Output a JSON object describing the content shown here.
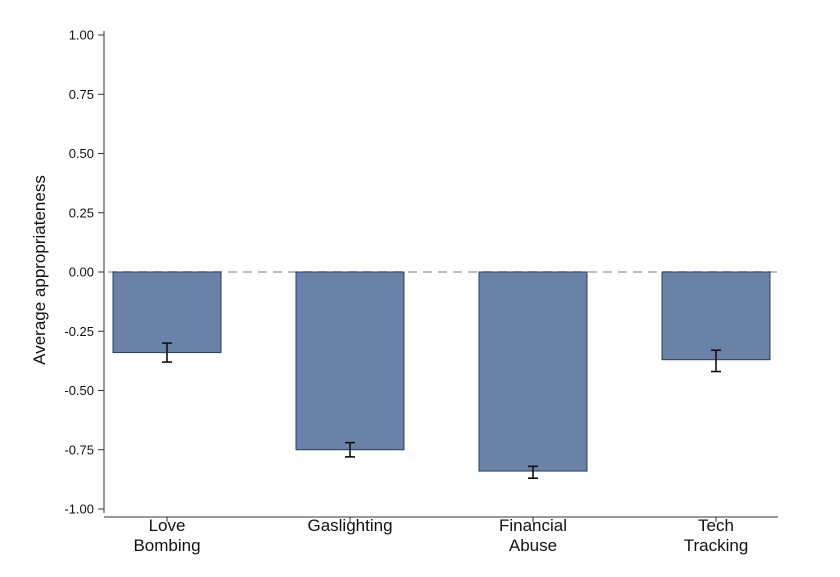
{
  "chart_data": {
    "type": "bar",
    "categories": [
      [
        "Love",
        "Bombing"
      ],
      [
        "Gaslighting"
      ],
      [
        "Financial",
        "Abuse"
      ],
      [
        "Tech",
        "Tracking"
      ]
    ],
    "values": [
      -0.34,
      -0.75,
      -0.84,
      -0.37
    ],
    "error_bars": [
      {
        "low": -0.38,
        "high": -0.3
      },
      {
        "low": -0.78,
        "high": -0.72
      },
      {
        "low": -0.87,
        "high": -0.82
      },
      {
        "low": -0.42,
        "high": -0.33
      }
    ],
    "ylabel": "Average appropriateness",
    "xlabel": "",
    "title": "",
    "ylim": [
      -1.0,
      1.0
    ],
    "yticks": [
      1.0,
      0.75,
      0.5,
      0.25,
      0.0,
      -0.25,
      -0.5,
      -0.75,
      -1.0
    ],
    "ytick_labels": [
      "1.00",
      "0.75",
      "0.50",
      "0.25",
      "0.00",
      "-0.25",
      "-0.50",
      "-0.75",
      "-1.00"
    ],
    "reference_line": {
      "y": 0,
      "style": "dashed"
    },
    "grid": false,
    "legend": "none",
    "colors": {
      "bar_fill": "#6a82a8",
      "bar_stroke": "#2f3e58",
      "axis": "#333333",
      "zero_line": "#bdbdbd",
      "error_bar": "#111111"
    }
  }
}
